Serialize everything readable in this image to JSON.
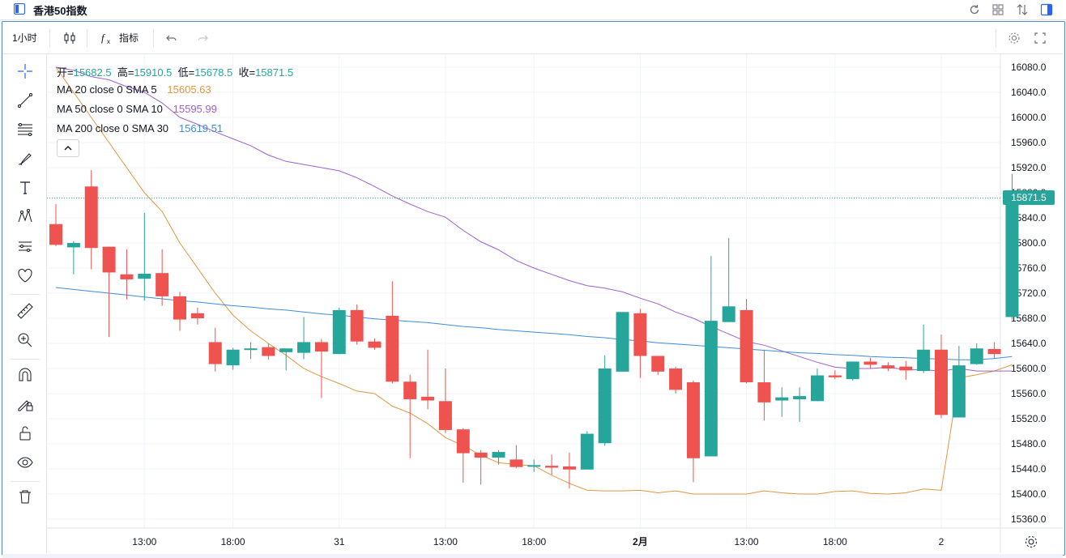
{
  "window": {
    "title": "香港50指数",
    "icons": [
      "app-icon",
      "refresh-icon",
      "layout-icon",
      "sort-icon",
      "sidebar-icon"
    ]
  },
  "toolbar": {
    "interval": "1小时",
    "indicators_label": "指标",
    "icons": [
      "candles-icon",
      "function-icon",
      "undo-icon",
      "redo-icon",
      "settings-icon",
      "fullscreen-icon"
    ]
  },
  "sidebar_tools": [
    "crosshair-icon",
    "trendline-icon",
    "fib-icon",
    "brush-icon",
    "text-icon",
    "pattern-icon",
    "projection-icon",
    "heart-icon",
    "ruler-icon",
    "zoom-icon",
    "magnet-icon",
    "lock-draw-icon",
    "lock-icon",
    "eye-icon",
    "trash-icon"
  ],
  "legend": {
    "ohlc": [
      {
        "label": "开=",
        "value": "15682.5"
      },
      {
        "label": "高=",
        "value": "15910.5"
      },
      {
        "label": "低=",
        "value": "15678.5"
      },
      {
        "label": "收=",
        "value": "15871.5"
      }
    ],
    "ma": [
      {
        "label": "MA 20 close 0 SMA 5",
        "value": "15605.63",
        "color": "#e3963e"
      },
      {
        "label": "MA 50 close 0 SMA 10",
        "value": "15595.99",
        "color": "#9c5fd3"
      },
      {
        "label": "MA 200 close 0 SMA 30",
        "value": "15619.51",
        "color": "#3b8de0"
      }
    ]
  },
  "last_price": "15871.5",
  "colors": {
    "up": "#26a69a",
    "down": "#ef5350",
    "accent": "#2962ff"
  },
  "chart_data": {
    "type": "candlestick",
    "y_ticks": [
      16080.0,
      16040.0,
      16000.0,
      15960.0,
      15920.0,
      15880.0,
      15840.0,
      15800.0,
      15760.0,
      15720.0,
      15680.0,
      15640.0,
      15600.0,
      15560.0,
      15520.0,
      15480.0,
      15440.0,
      15400.0,
      15360.0
    ],
    "ylim": [
      15320,
      16100
    ],
    "x_ticks": [
      {
        "index": 5,
        "label": "13:00",
        "bold": false
      },
      {
        "index": 10,
        "label": "18:00",
        "bold": false
      },
      {
        "index": 16,
        "label": "31",
        "bold": false
      },
      {
        "index": 22,
        "label": "13:00",
        "bold": false
      },
      {
        "index": 27,
        "label": "18:00",
        "bold": false
      },
      {
        "index": 33,
        "label": "2月",
        "bold": true
      },
      {
        "index": 39,
        "label": "13:00",
        "bold": false
      },
      {
        "index": 44,
        "label": "18:00",
        "bold": false
      },
      {
        "index": 50,
        "label": "2",
        "bold": false
      }
    ],
    "candles": [
      [
        15830,
        15862,
        15795,
        15797
      ],
      [
        15793,
        15803,
        15750,
        15800
      ],
      [
        15890,
        15916,
        15758,
        15792
      ],
      [
        15794,
        15794,
        15650,
        15753
      ],
      [
        15750,
        15790,
        15710,
        15742
      ],
      [
        15743,
        15848,
        15708,
        15751
      ],
      [
        15752,
        15790,
        15700,
        15715
      ],
      [
        15715,
        15722,
        15660,
        15678
      ],
      [
        15688,
        15697,
        15670,
        15680
      ],
      [
        15642,
        15665,
        15595,
        15607
      ],
      [
        15605,
        15633,
        15598,
        15630
      ],
      [
        15630,
        15642,
        15615,
        15632
      ],
      [
        15634,
        15640,
        15614,
        15620
      ],
      [
        15626,
        15628,
        15597,
        15632
      ],
      [
        15625,
        15682,
        15615,
        15642
      ],
      [
        15642,
        15647,
        15553,
        15627
      ],
      [
        15623,
        15697,
        15623,
        15693
      ],
      [
        15693,
        15702,
        15638,
        15643
      ],
      [
        15643,
        15648,
        15630,
        15633
      ],
      [
        15684,
        15739,
        15576,
        15579
      ],
      [
        15579,
        15590,
        15457,
        15551
      ],
      [
        15555,
        15630,
        15535,
        15549
      ],
      [
        15548,
        15600,
        15497,
        15502
      ],
      [
        15503,
        15505,
        15418,
        15465
      ],
      [
        15466,
        15470,
        15415,
        15458
      ],
      [
        15458,
        15470,
        15447,
        15467
      ],
      [
        15455,
        15478,
        15441,
        15443
      ],
      [
        15444,
        15455,
        15435,
        15446
      ],
      [
        15445,
        15463,
        15431,
        15442
      ],
      [
        15444,
        15466,
        15409,
        15439
      ],
      [
        15439,
        15500,
        15439,
        15496
      ],
      [
        15481,
        15621,
        15477,
        15600
      ],
      [
        15595,
        15690,
        15595,
        15690
      ],
      [
        15688,
        15695,
        15585,
        15620
      ],
      [
        15620,
        15620,
        15590,
        15595
      ],
      [
        15600,
        15603,
        15560,
        15566
      ],
      [
        15578,
        15581,
        15419,
        15457
      ],
      [
        15460,
        15779,
        15460,
        15676
      ],
      [
        15674,
        15808,
        15674,
        15699
      ],
      [
        15693,
        15711,
        15576,
        15578
      ],
      [
        15578,
        15630,
        15517,
        15546
      ],
      [
        15549,
        15570,
        15523,
        15554
      ],
      [
        15551,
        15570,
        15515,
        15556
      ],
      [
        15548,
        15600,
        15548,
        15589
      ],
      [
        15589,
        15597,
        15583,
        15586
      ],
      [
        15583,
        15610,
        15581,
        15611
      ],
      [
        15611,
        15617,
        15600,
        15606
      ],
      [
        15605,
        15610,
        15596,
        15600
      ],
      [
        15603,
        15612,
        15582,
        15597
      ],
      [
        15596,
        15670,
        15593,
        15630
      ],
      [
        15630,
        15654,
        15521,
        15526
      ],
      [
        15522,
        15636,
        15522,
        15605
      ],
      [
        15607,
        15640,
        15606,
        15632
      ],
      [
        15631,
        15642,
        15616,
        15623
      ],
      [
        15682,
        15910,
        15678,
        15871
      ]
    ],
    "series": [
      {
        "name": "MA 20 close 0 SMA 5",
        "color": "#e3963e",
        "values": [
          16080,
          16040,
          16000,
          15960,
          15920,
          15880,
          15850,
          15800,
          15760,
          15720,
          15685,
          15660,
          15640,
          15621,
          15600,
          15587,
          15576,
          15564,
          15560,
          15540,
          15529,
          15512,
          15490,
          15477,
          15462,
          15450,
          15447,
          15445,
          15430,
          15417,
          15406,
          15405,
          15405,
          15406,
          15402,
          15405,
          15400,
          15400,
          15400,
          15400,
          15405,
          15402,
          15400,
          15400,
          15404,
          15405,
          15401,
          15400,
          15402,
          15408,
          15406,
          15585,
          15590,
          15596,
          15606
        ]
      },
      {
        "name": "MA 50 close 0 SMA 10",
        "color": "#9c5fd3",
        "values": [
          16080,
          16075,
          16065,
          16060,
          16049,
          16040,
          16023,
          16000,
          15989,
          15977,
          15966,
          15955,
          15940,
          15930,
          15925,
          15920,
          15915,
          15904,
          15890,
          15875,
          15862,
          15850,
          15841,
          15820,
          15802,
          15789,
          15772,
          15760,
          15750,
          15740,
          15732,
          15728,
          15722,
          15712,
          15703,
          15690,
          15680,
          15667,
          15655,
          15643,
          15637,
          15628,
          15619,
          15610,
          15602,
          15600,
          15600,
          15602,
          15598,
          15598,
          15596,
          15600,
          15596,
          15596,
          15596
        ]
      },
      {
        "name": "MA 200 close 0 SMA 30",
        "color": "#3b8de0",
        "values": [
          15729,
          15726,
          15723,
          15720,
          15717,
          15714,
          15711,
          15708,
          15706,
          15703,
          15700,
          15698,
          15695,
          15693,
          15690,
          15687,
          15685,
          15682,
          15679,
          15677,
          15675,
          15673,
          15670,
          15667,
          15665,
          15662,
          15660,
          15658,
          15656,
          15654,
          15651,
          15649,
          15646,
          15644,
          15641,
          15639,
          15637,
          15635,
          15633,
          15631,
          15629,
          15627,
          15625,
          15624,
          15622,
          15621,
          15619,
          15618,
          15617,
          15616,
          15615,
          15614,
          15614,
          15616,
          15619
        ]
      }
    ]
  }
}
